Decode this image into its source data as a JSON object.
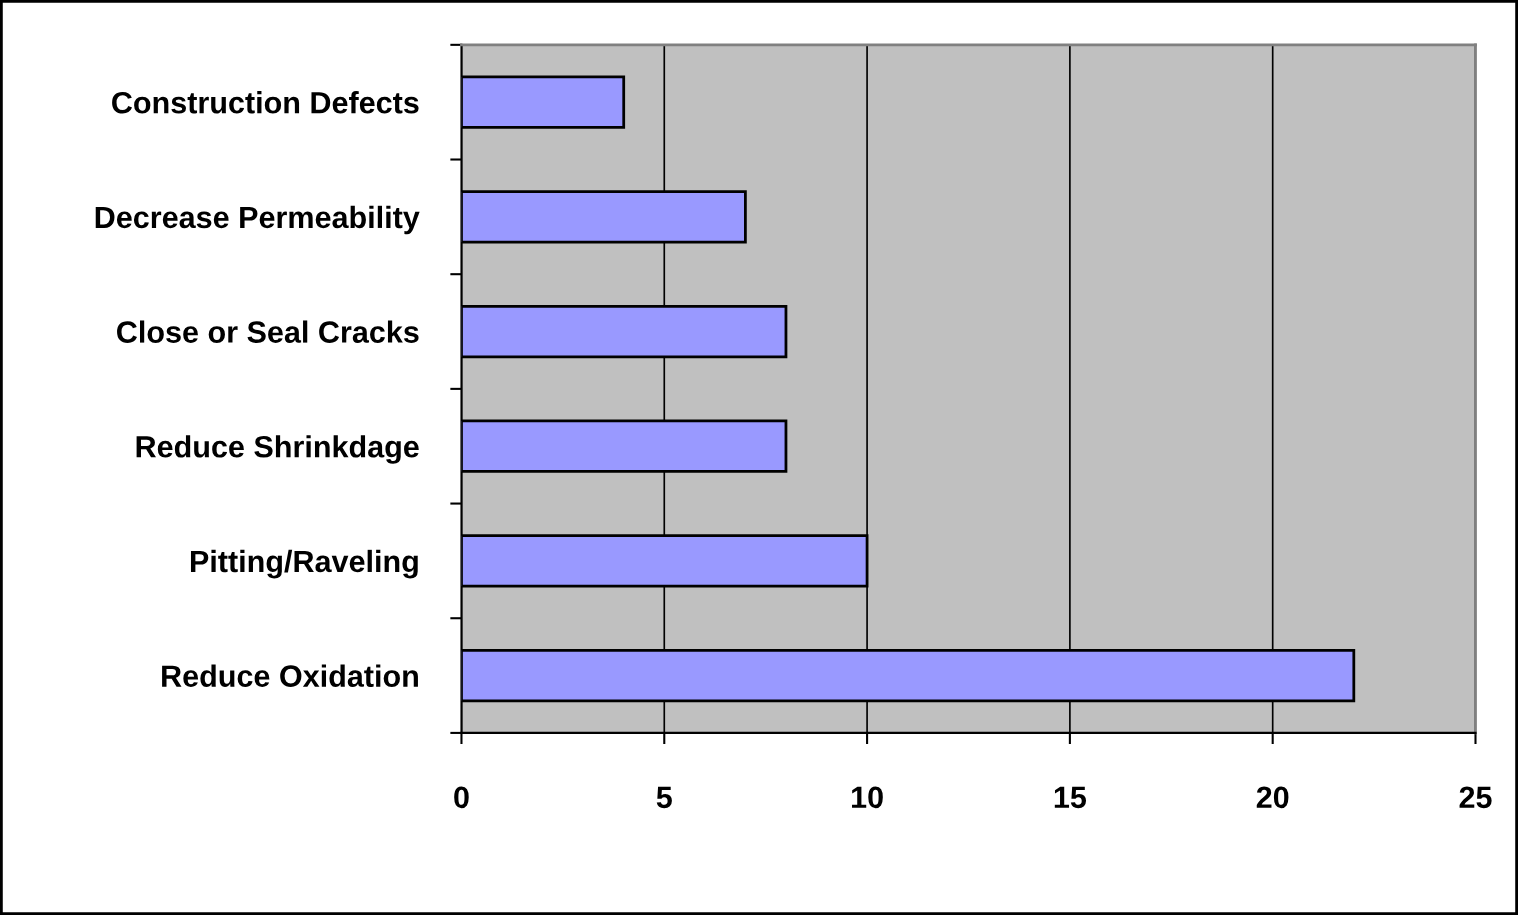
{
  "chart_data": {
    "type": "bar",
    "orientation": "horizontal",
    "categories": [
      "Construction Defects",
      "Decrease Permeability",
      "Close or Seal Cracks",
      "Reduce Shrinkdage",
      "Pitting/Raveling",
      "Reduce Oxidation"
    ],
    "values": [
      4,
      7,
      8,
      8,
      10,
      22
    ],
    "color": "#9999ff",
    "xlim": [
      0,
      25
    ],
    "xticks": [
      0,
      5,
      10,
      15,
      20,
      25
    ],
    "grid": "x"
  }
}
